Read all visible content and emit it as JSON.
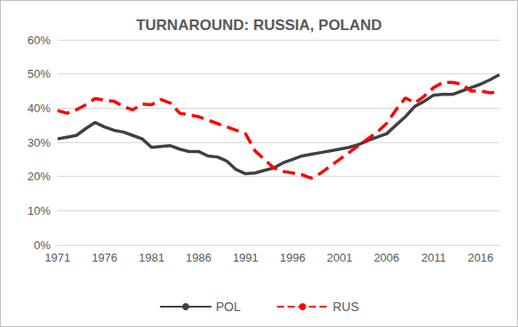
{
  "chart_data": {
    "type": "line",
    "title": "TURNAROUND: RUSSIA, POLAND",
    "categories": [
      "1971",
      null,
      null,
      null,
      null,
      "1976",
      null,
      null,
      null,
      null,
      "1981",
      null,
      null,
      null,
      null,
      "1986",
      null,
      null,
      null,
      null,
      "1991",
      null,
      null,
      null,
      null,
      "1996",
      null,
      null,
      null,
      null,
      "2001",
      null,
      null,
      null,
      null,
      "2006",
      null,
      null,
      null,
      null,
      "2011",
      null,
      null,
      null,
      null,
      "2016",
      null,
      null
    ],
    "series": [
      {
        "name": "POL",
        "color": "#404040",
        "line_style": "solid",
        "values": [
          31,
          31.5,
          32,
          34,
          35.8,
          34.5,
          33.5,
          33,
          32,
          31,
          28.5,
          28.8,
          29,
          28,
          27.3,
          27.3,
          26,
          25.7,
          24.5,
          22,
          20.8,
          21,
          21.8,
          22.5,
          24,
          25,
          26,
          26.5,
          27,
          27.5,
          28,
          28.5,
          29.3,
          30.5,
          31.5,
          32.5,
          35,
          37.5,
          40.5,
          42,
          43.8,
          44,
          44,
          45,
          46,
          47,
          48.3,
          49.8
        ]
      },
      {
        "name": "RUS",
        "color": "#ff0000",
        "line_style": "dashed",
        "values": [
          39.3,
          38.5,
          39.5,
          41,
          42.8,
          42.3,
          42,
          40.5,
          39.5,
          41.2,
          41,
          42.5,
          41.5,
          38.5,
          38,
          37.5,
          36.5,
          35.5,
          34.5,
          33.5,
          32.5,
          27.5,
          25,
          22.5,
          21.5,
          21,
          20.5,
          19.5,
          21,
          23,
          25,
          27,
          29,
          31,
          33,
          35.5,
          39.5,
          43,
          41.5,
          43.5,
          46,
          47.5,
          47.5,
          47,
          45,
          45,
          44.5,
          44.8
        ]
      }
    ],
    "ylim": [
      0,
      60
    ],
    "yticks": [
      {
        "value": 0,
        "label": "0%"
      },
      {
        "value": 10,
        "label": "10%"
      },
      {
        "value": 20,
        "label": "20%"
      },
      {
        "value": 30,
        "label": "30%"
      },
      {
        "value": 40,
        "label": "40%"
      },
      {
        "value": 50,
        "label": "50%"
      },
      {
        "value": 60,
        "label": "60%"
      }
    ],
    "grid": true,
    "legend": "bottom"
  }
}
